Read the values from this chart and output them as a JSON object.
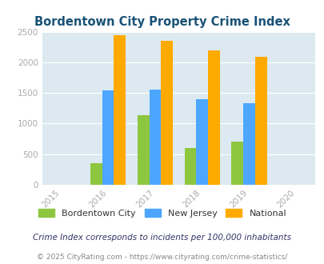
{
  "title": "Bordentown City Property Crime Index",
  "years": [
    2016,
    2017,
    2018,
    2019
  ],
  "x_ticks": [
    2015,
    2016,
    2017,
    2018,
    2019,
    2020
  ],
  "bordentown": [
    350,
    1130,
    600,
    700
  ],
  "new_jersey": [
    1535,
    1555,
    1400,
    1335
  ],
  "national": [
    2440,
    2350,
    2200,
    2095
  ],
  "bar_colors": {
    "bordentown": "#8dc63f",
    "new_jersey": "#4da6ff",
    "national": "#ffaa00"
  },
  "ylim": [
    0,
    2500
  ],
  "yticks": [
    0,
    500,
    1000,
    1500,
    2000,
    2500
  ],
  "background_color": "#dce9f0",
  "title_color": "#1a5276",
  "legend_labels": [
    "Bordentown City",
    "New Jersey",
    "National"
  ],
  "footnote1": "Crime Index corresponds to incidents per 100,000 inhabitants",
  "footnote2": "© 2025 CityRating.com - https://www.cityrating.com/crime-statistics/",
  "bar_width": 0.25,
  "tick_color": "#aaaaaa",
  "footnote1_color": "#333366",
  "footnote2_color": "#888888"
}
